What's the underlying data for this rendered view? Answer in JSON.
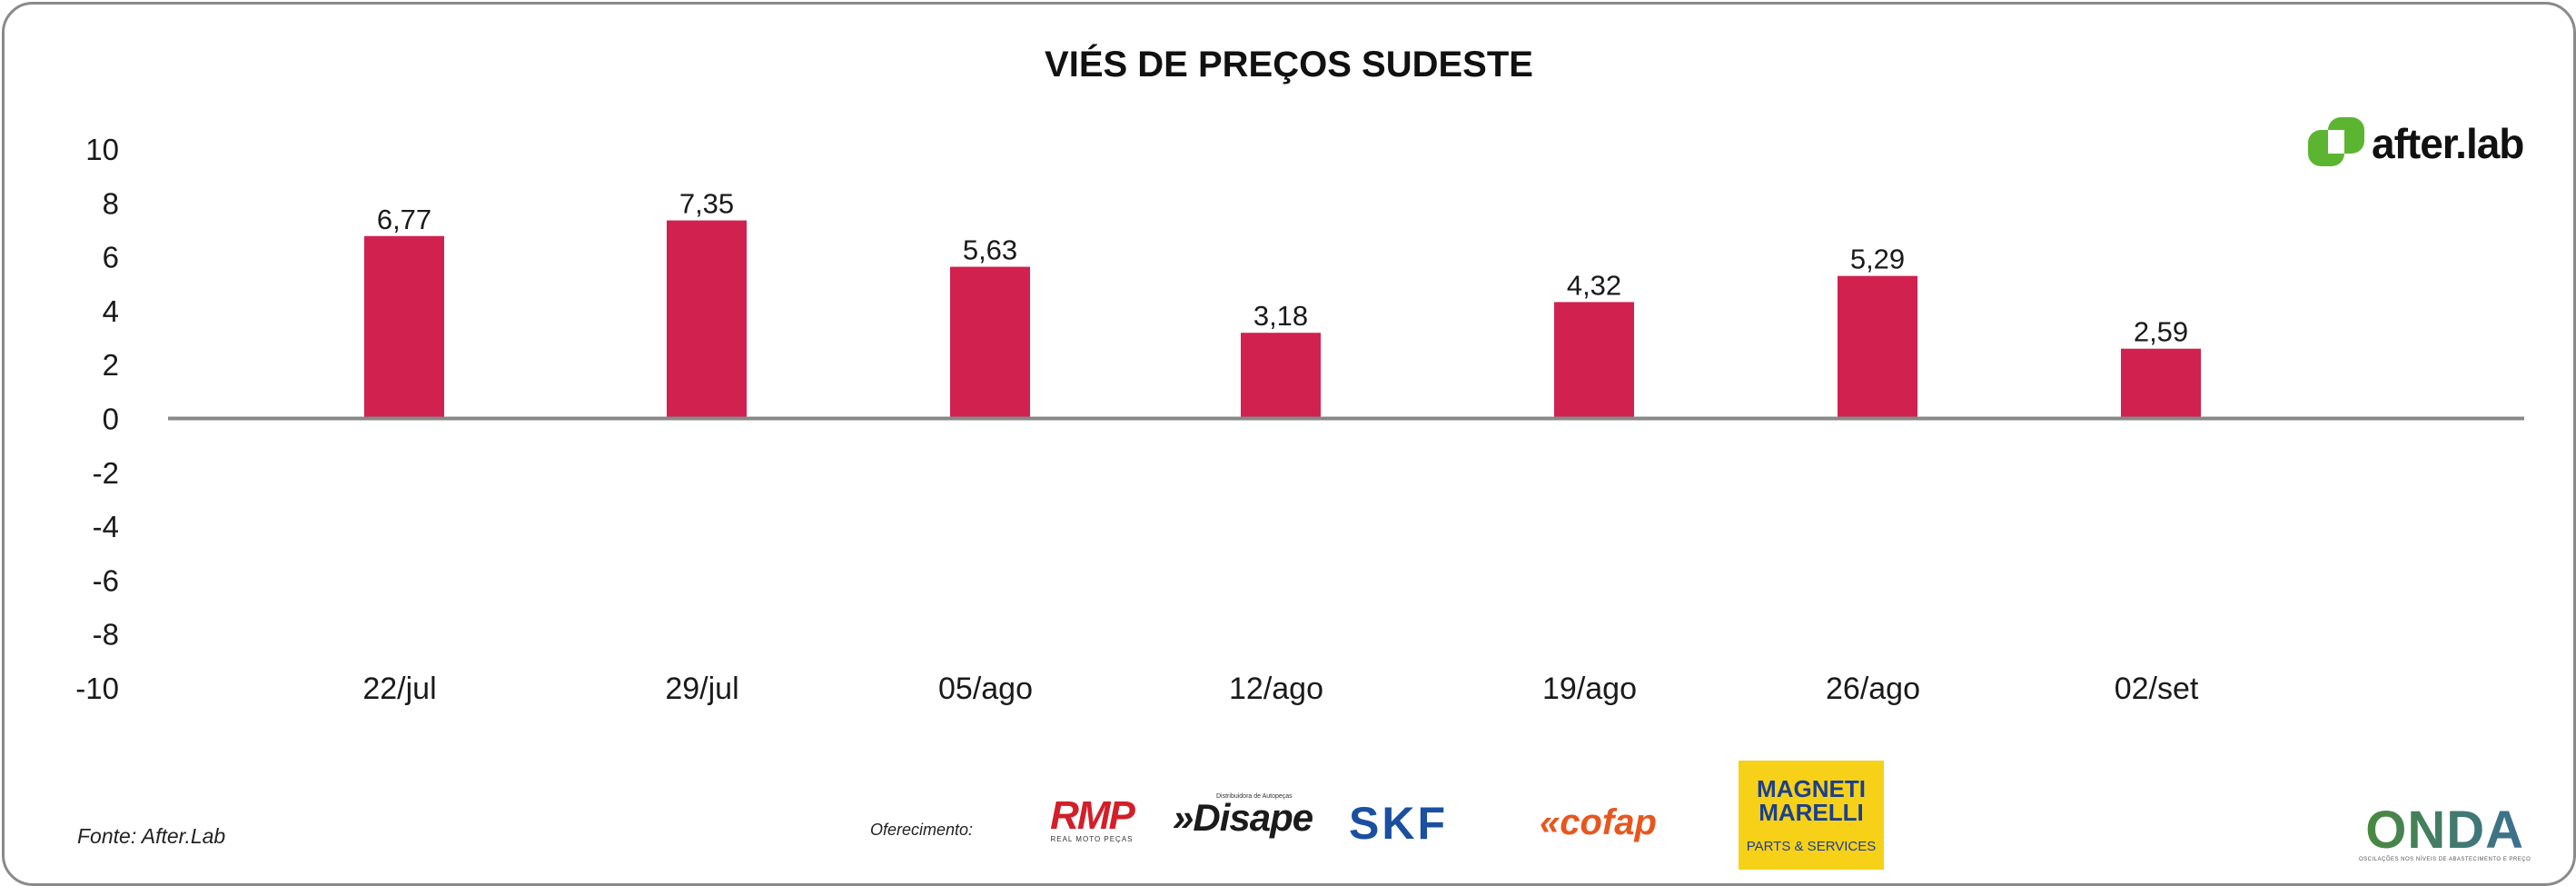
{
  "chart_data": {
    "type": "bar",
    "title": "VIÉS DE PREÇOS SUDESTE",
    "categories": [
      "22/jul",
      "29/jul",
      "05/ago",
      "12/ago",
      "19/ago",
      "26/ago",
      "02/set"
    ],
    "values": [
      6.77,
      7.35,
      5.63,
      3.18,
      4.32,
      5.29,
      2.59
    ],
    "data_labels": [
      "6,77",
      "7,35",
      "5,63",
      "3,18",
      "4,32",
      "5,29",
      "2,59"
    ],
    "ylim": [
      -10,
      10
    ],
    "yticks": [
      10,
      8,
      6,
      4,
      2,
      0,
      -2,
      -4,
      -6,
      -8,
      -10
    ],
    "xlabel": "",
    "ylabel": "",
    "grid": false,
    "legend": "none",
    "bar_color": "#d0214f",
    "axis_color": "#888888"
  },
  "footer": {
    "source": "Fonte: After.Lab",
    "sponsor_label": "Oferecimento:"
  },
  "logos": {
    "afterlab": {
      "text": "after.lab",
      "color": "#5cb531"
    },
    "rmp": {
      "text": "RMP",
      "subtext": "REAL MOTO PEÇAS"
    },
    "disape": {
      "text": "»Disape",
      "subtext": "Distribuidora de Autopeças"
    },
    "skf": {
      "text": "SKF"
    },
    "cofap": {
      "text": "cofap"
    },
    "magneti": {
      "text": "MAGNETI MARELLI",
      "subtext": "PARTS & SERVICES"
    },
    "onda": {
      "text": "ONDA",
      "subtext": "OSCILAÇÕES NOS NÍVEIS DE ABASTECIMENTO E PREÇO"
    }
  }
}
